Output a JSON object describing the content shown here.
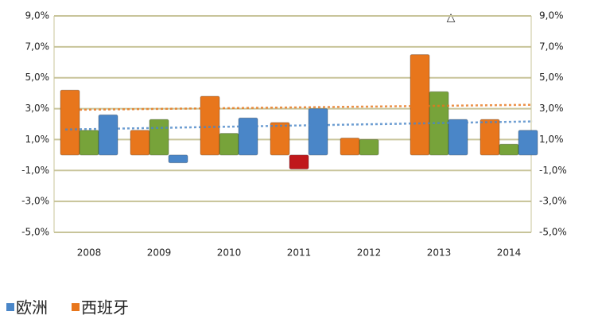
{
  "chart_data": {
    "type": "bar",
    "annotation": "△",
    "categories": [
      "2008",
      "2009",
      "2010",
      "2011",
      "2012",
      "2013",
      "2014"
    ],
    "series": [
      {
        "name": "西班牙",
        "color": "#e8761c",
        "trendline": true,
        "values": [
          4.2,
          1.6,
          3.8,
          2.1,
          1.1,
          6.5,
          2.3
        ]
      },
      {
        "color": "#77a33a",
        "colors": [
          "#77a33a",
          "#77a33a",
          "#77a33a",
          "#c0181c",
          "#77a33a",
          "#77a33a",
          "#77a33a"
        ],
        "values": [
          1.6,
          2.3,
          1.4,
          -0.9,
          1.0,
          4.1,
          0.7
        ]
      },
      {
        "name": "欧洲",
        "color": "#4a86c8",
        "trendline": true,
        "values": [
          2.6,
          -0.5,
          2.4,
          3.0,
          null,
          2.3,
          1.6
        ]
      }
    ],
    "ylim": [
      -5,
      9
    ],
    "yticks": [
      {
        "value": -5,
        "label": "-5,0%"
      },
      {
        "value": -3,
        "label": "-3,0%"
      },
      {
        "value": -1,
        "label": "-1,0%"
      },
      {
        "value": 1,
        "label": "1,0%"
      },
      {
        "value": 3,
        "label": "3,0%"
      },
      {
        "value": 5,
        "label": "5,0%"
      },
      {
        "value": 7,
        "label": "7,0%"
      },
      {
        "value": 9,
        "label": "9,0%"
      }
    ],
    "grid": true
  }
}
